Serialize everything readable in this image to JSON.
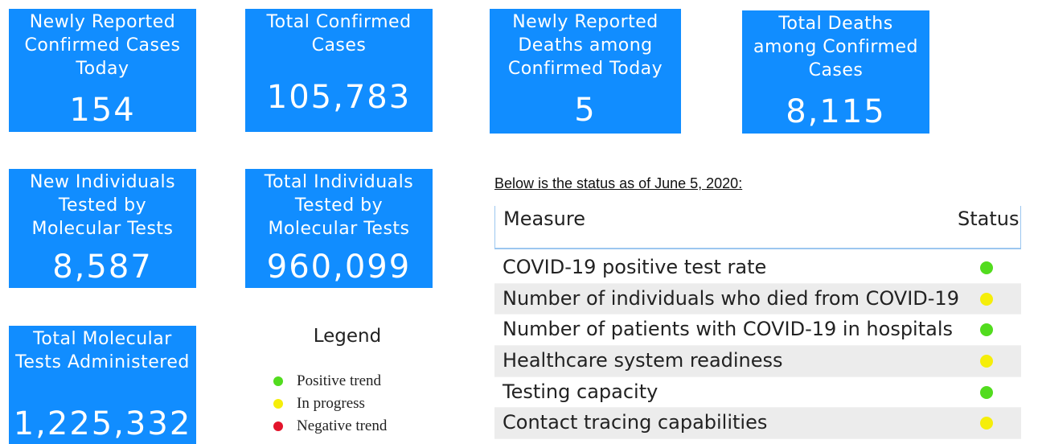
{
  "cards": [
    {
      "label": "Newly Reported Confirmed Cases Today",
      "value": "154"
    },
    {
      "label": "Total Confirmed Cases",
      "value": "105,783"
    },
    {
      "label": "Newly Reported Deaths among Confirmed Today",
      "value": "5"
    },
    {
      "label": "Total Deaths among Confirmed Cases",
      "value": "8,115"
    },
    {
      "label": "New Individuals Tested by Molecular Tests",
      "value": "8,587"
    },
    {
      "label": "Total Individuals Tested by Molecular Tests",
      "value": "960,099"
    },
    {
      "label": "Total Molecular Tests Administered",
      "value": "1,225,332"
    }
  ],
  "card_color": "#118dff",
  "legend": {
    "title": "Legend",
    "items": [
      {
        "label": "Positive trend",
        "color": "#52dc1e"
      },
      {
        "label": "In progress",
        "color": "#f5ee0a"
      },
      {
        "label": "Negative trend",
        "color": "#e3142b"
      }
    ]
  },
  "status": {
    "caption": "Below is the status as of June 5, 2020:",
    "header": [
      "Measure",
      "Status"
    ],
    "rows": [
      {
        "measure": "COVID-19 positive test rate",
        "color": "#52dc1e"
      },
      {
        "measure": "Number of individuals who died from COVID-19",
        "color": "#f5ee0a"
      },
      {
        "measure": "Number of patients with COVID-19 in hospitals",
        "color": "#52dc1e"
      },
      {
        "measure": "Healthcare system readiness",
        "color": "#f5ee0a"
      },
      {
        "measure": "Testing capacity",
        "color": "#52dc1e"
      },
      {
        "measure": "Contact tracing capabilities",
        "color": "#f5ee0a"
      }
    ]
  }
}
